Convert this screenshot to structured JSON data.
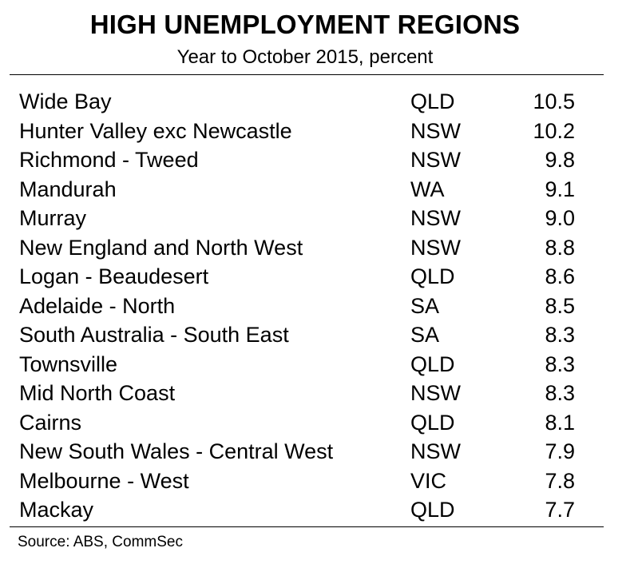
{
  "chart_data": {
    "type": "table",
    "title": "HIGH UNEMPLOYMENT REGIONS",
    "subtitle": "Year to October 2015, percent",
    "rows": [
      {
        "region": "Wide Bay",
        "state": "QLD",
        "value": "10.5"
      },
      {
        "region": "Hunter Valley exc Newcastle",
        "state": "NSW",
        "value": "10.2"
      },
      {
        "region": "Richmond - Tweed",
        "state": "NSW",
        "value": "9.8"
      },
      {
        "region": "Mandurah",
        "state": "WA",
        "value": "9.1"
      },
      {
        "region": "Murray",
        "state": "NSW",
        "value": "9.0"
      },
      {
        "region": "New England and North West",
        "state": "NSW",
        "value": "8.8"
      },
      {
        "region": "Logan - Beaudesert",
        "state": "QLD",
        "value": "8.6"
      },
      {
        "region": "Adelaide - North",
        "state": "SA",
        "value": "8.5"
      },
      {
        "region": "South Australia - South East",
        "state": "SA",
        "value": "8.3"
      },
      {
        "region": "Townsville",
        "state": "QLD",
        "value": "8.3"
      },
      {
        "region": "Mid North Coast",
        "state": "NSW",
        "value": "8.3"
      },
      {
        "region": "Cairns",
        "state": "QLD",
        "value": "8.1"
      },
      {
        "region": "New South Wales - Central West",
        "state": "NSW",
        "value": "7.9"
      },
      {
        "region": "Melbourne - West",
        "state": "VIC",
        "value": "7.8"
      },
      {
        "region": "Mackay",
        "state": "QLD",
        "value": "7.7"
      }
    ],
    "source": "Source: ABS, CommSec"
  }
}
